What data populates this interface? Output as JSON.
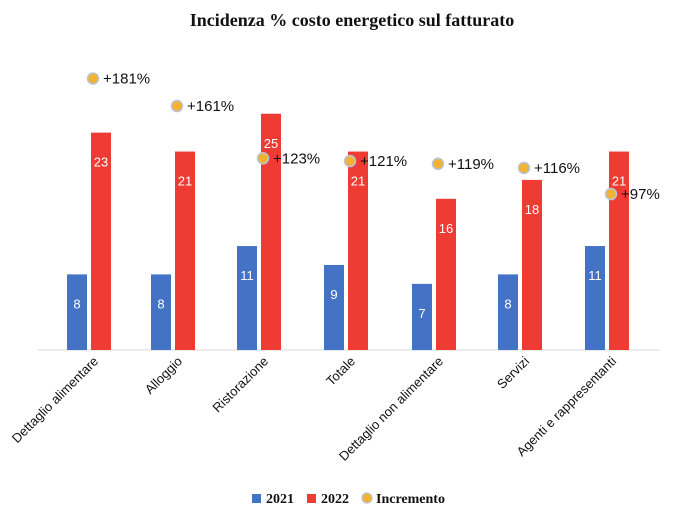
{
  "chart_data": {
    "type": "bar",
    "title": "Incidenza % costo energetico sul fatturato",
    "categories": [
      "Dettaglio alimentare",
      "Alloggio",
      "Ristorazione",
      "Totale",
      "Dettaglio non alimentare",
      "Servizi",
      "Agenti e rappresentanti"
    ],
    "series": [
      {
        "name": "2021",
        "color": "#4472c4",
        "values": [
          8,
          8,
          11,
          9,
          7,
          8,
          11
        ]
      },
      {
        "name": "2022",
        "color": "#ee3b33",
        "values": [
          23,
          21,
          25,
          21,
          16,
          18,
          21
        ]
      }
    ],
    "increment": {
      "name": "Incremento",
      "color": "#f2b233",
      "labels": [
        "+181%",
        "+161%",
        "+123%",
        "+121%",
        "+119%",
        "+116%",
        "+97%"
      ],
      "values": [
        181,
        161,
        123,
        121,
        119,
        116,
        97
      ]
    },
    "ylim": [
      0,
      30
    ],
    "xlabel": "",
    "ylabel": "",
    "grid": false,
    "legend": "bottom"
  }
}
